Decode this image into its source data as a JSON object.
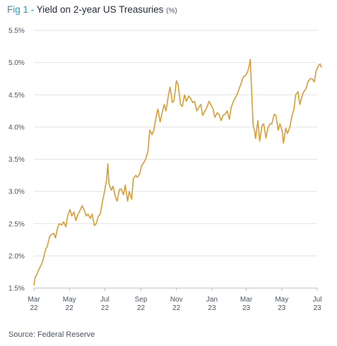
{
  "header": {
    "fig_label": "Fig 1 -",
    "title": "Yield on 2-year US Treasuries",
    "unit": "(%)"
  },
  "source": "Source: Federal Reserve",
  "colors": {
    "line": "#dc9c32",
    "grid": "#e2e2e2",
    "axis": "#bdbdbd",
    "accent": "#2a9db5"
  },
  "chart_data": {
    "type": "line",
    "title": "Yield on 2-year US Treasuries",
    "ylabel": "(%)",
    "xlabel": "",
    "ylim": [
      1.5,
      5.5
    ],
    "y_ticks": [
      "1.5%",
      "2.0%",
      "2.5%",
      "3.0%",
      "3.5%",
      "4.0%",
      "4.5%",
      "5.0%",
      "5.5%"
    ],
    "y_tick_values": [
      1.5,
      2.0,
      2.5,
      3.0,
      3.5,
      4.0,
      4.5,
      5.0,
      5.5
    ],
    "x_ticks": [
      {
        "month": "Mar",
        "year": "22",
        "date": "2022-03-01"
      },
      {
        "month": "May",
        "year": "22",
        "date": "2022-05-01"
      },
      {
        "month": "Jul",
        "year": "22",
        "date": "2022-07-01"
      },
      {
        "month": "Sep",
        "year": "22",
        "date": "2022-09-01"
      },
      {
        "month": "Nov",
        "year": "22",
        "date": "2022-11-01"
      },
      {
        "month": "Jan",
        "year": "23",
        "date": "2023-01-01"
      },
      {
        "month": "Mar",
        "year": "23",
        "date": "2023-03-01"
      },
      {
        "month": "May",
        "year": "23",
        "date": "2023-05-01"
      },
      {
        "month": "Jul",
        "year": "23",
        "date": "2023-07-01"
      }
    ],
    "grid": "horizontal",
    "legend": "none",
    "series": [
      {
        "points": [
          [
            "2022-03-01",
            1.55
          ],
          [
            "2022-03-03",
            1.66
          ],
          [
            "2022-03-07",
            1.73
          ],
          [
            "2022-03-10",
            1.8
          ],
          [
            "2022-03-14",
            1.87
          ],
          [
            "2022-03-17",
            1.95
          ],
          [
            "2022-03-21",
            2.1
          ],
          [
            "2022-03-24",
            2.15
          ],
          [
            "2022-03-28",
            2.3
          ],
          [
            "2022-03-31",
            2.33
          ],
          [
            "2022-04-04",
            2.35
          ],
          [
            "2022-04-07",
            2.28
          ],
          [
            "2022-04-11",
            2.45
          ],
          [
            "2022-04-14",
            2.5
          ],
          [
            "2022-04-18",
            2.48
          ],
          [
            "2022-04-21",
            2.53
          ],
          [
            "2022-04-25",
            2.45
          ],
          [
            "2022-04-28",
            2.62
          ],
          [
            "2022-05-02",
            2.72
          ],
          [
            "2022-05-05",
            2.62
          ],
          [
            "2022-05-09",
            2.68
          ],
          [
            "2022-05-12",
            2.55
          ],
          [
            "2022-05-16",
            2.65
          ],
          [
            "2022-05-19",
            2.7
          ],
          [
            "2022-05-23",
            2.78
          ],
          [
            "2022-05-26",
            2.72
          ],
          [
            "2022-05-30",
            2.62
          ],
          [
            "2022-06-02",
            2.65
          ],
          [
            "2022-06-06",
            2.58
          ],
          [
            "2022-06-09",
            2.65
          ],
          [
            "2022-06-13",
            2.47
          ],
          [
            "2022-06-16",
            2.5
          ],
          [
            "2022-06-20",
            2.62
          ],
          [
            "2022-06-23",
            2.65
          ],
          [
            "2022-06-27",
            2.85
          ],
          [
            "2022-06-30",
            2.98
          ],
          [
            "2022-07-04",
            3.18
          ],
          [
            "2022-07-06",
            3.43
          ],
          [
            "2022-07-08",
            3.12
          ],
          [
            "2022-07-12",
            3.02
          ],
          [
            "2022-07-15",
            3.08
          ],
          [
            "2022-07-19",
            2.92
          ],
          [
            "2022-07-22",
            2.85
          ],
          [
            "2022-07-26",
            3.03
          ],
          [
            "2022-07-29",
            3.04
          ],
          [
            "2022-08-02",
            2.95
          ],
          [
            "2022-08-05",
            3.1
          ],
          [
            "2022-08-09",
            2.85
          ],
          [
            "2022-08-12",
            3.0
          ],
          [
            "2022-08-16",
            2.88
          ],
          [
            "2022-08-19",
            3.2
          ],
          [
            "2022-08-23",
            3.25
          ],
          [
            "2022-08-26",
            3.22
          ],
          [
            "2022-08-30",
            3.28
          ],
          [
            "2022-09-02",
            3.4
          ],
          [
            "2022-09-06",
            3.45
          ],
          [
            "2022-09-09",
            3.5
          ],
          [
            "2022-09-13",
            3.62
          ],
          [
            "2022-09-16",
            3.95
          ],
          [
            "2022-09-20",
            3.88
          ],
          [
            "2022-09-23",
            3.95
          ],
          [
            "2022-09-27",
            4.15
          ],
          [
            "2022-09-30",
            4.28
          ],
          [
            "2022-10-04",
            4.08
          ],
          [
            "2022-10-07",
            4.2
          ],
          [
            "2022-10-11",
            4.35
          ],
          [
            "2022-10-14",
            4.25
          ],
          [
            "2022-10-18",
            4.48
          ],
          [
            "2022-10-21",
            4.62
          ],
          [
            "2022-10-25",
            4.38
          ],
          [
            "2022-10-28",
            4.42
          ],
          [
            "2022-11-01",
            4.72
          ],
          [
            "2022-11-04",
            4.65
          ],
          [
            "2022-11-08",
            4.35
          ],
          [
            "2022-11-11",
            4.32
          ],
          [
            "2022-11-15",
            4.5
          ],
          [
            "2022-11-18",
            4.4
          ],
          [
            "2022-11-22",
            4.48
          ],
          [
            "2022-11-25",
            4.45
          ],
          [
            "2022-11-29",
            4.38
          ],
          [
            "2022-12-02",
            4.4
          ],
          [
            "2022-12-06",
            4.25
          ],
          [
            "2022-12-09",
            4.3
          ],
          [
            "2022-12-13",
            4.35
          ],
          [
            "2022-12-16",
            4.18
          ],
          [
            "2022-12-20",
            4.25
          ],
          [
            "2022-12-23",
            4.3
          ],
          [
            "2022-12-27",
            4.4
          ],
          [
            "2022-12-30",
            4.35
          ],
          [
            "2023-01-03",
            4.28
          ],
          [
            "2023-01-06",
            4.15
          ],
          [
            "2023-01-10",
            4.22
          ],
          [
            "2023-01-13",
            4.2
          ],
          [
            "2023-01-17",
            4.1
          ],
          [
            "2023-01-20",
            4.18
          ],
          [
            "2023-01-24",
            4.2
          ],
          [
            "2023-01-27",
            4.25
          ],
          [
            "2023-01-31",
            4.12
          ],
          [
            "2023-02-03",
            4.3
          ],
          [
            "2023-02-07",
            4.4
          ],
          [
            "2023-02-10",
            4.45
          ],
          [
            "2023-02-14",
            4.52
          ],
          [
            "2023-02-17",
            4.6
          ],
          [
            "2023-02-21",
            4.7
          ],
          [
            "2023-02-24",
            4.78
          ],
          [
            "2023-02-28",
            4.8
          ],
          [
            "2023-03-03",
            4.85
          ],
          [
            "2023-03-06",
            4.95
          ],
          [
            "2023-03-08",
            5.05
          ],
          [
            "2023-03-10",
            4.6
          ],
          [
            "2023-03-13",
            4.02
          ],
          [
            "2023-03-15",
            3.95
          ],
          [
            "2023-03-17",
            3.82
          ],
          [
            "2023-03-21",
            4.1
          ],
          [
            "2023-03-24",
            3.78
          ],
          [
            "2023-03-28",
            4.02
          ],
          [
            "2023-03-31",
            4.05
          ],
          [
            "2023-04-04",
            3.83
          ],
          [
            "2023-04-07",
            3.98
          ],
          [
            "2023-04-11",
            4.05
          ],
          [
            "2023-04-14",
            4.05
          ],
          [
            "2023-04-18",
            4.2
          ],
          [
            "2023-04-21",
            4.18
          ],
          [
            "2023-04-25",
            3.95
          ],
          [
            "2023-04-28",
            4.05
          ],
          [
            "2023-05-02",
            3.93
          ],
          [
            "2023-05-04",
            3.75
          ],
          [
            "2023-05-08",
            3.98
          ],
          [
            "2023-05-11",
            3.9
          ],
          [
            "2023-05-15",
            4.0
          ],
          [
            "2023-05-18",
            4.15
          ],
          [
            "2023-05-22",
            4.28
          ],
          [
            "2023-05-25",
            4.5
          ],
          [
            "2023-05-29",
            4.55
          ],
          [
            "2023-06-01",
            4.35
          ],
          [
            "2023-06-05",
            4.48
          ],
          [
            "2023-06-08",
            4.55
          ],
          [
            "2023-06-12",
            4.6
          ],
          [
            "2023-06-15",
            4.7
          ],
          [
            "2023-06-19",
            4.75
          ],
          [
            "2023-06-22",
            4.75
          ],
          [
            "2023-06-26",
            4.7
          ],
          [
            "2023-06-29",
            4.87
          ],
          [
            "2023-07-03",
            4.95
          ],
          [
            "2023-07-06",
            4.98
          ],
          [
            "2023-07-08",
            4.93
          ]
        ]
      }
    ]
  }
}
